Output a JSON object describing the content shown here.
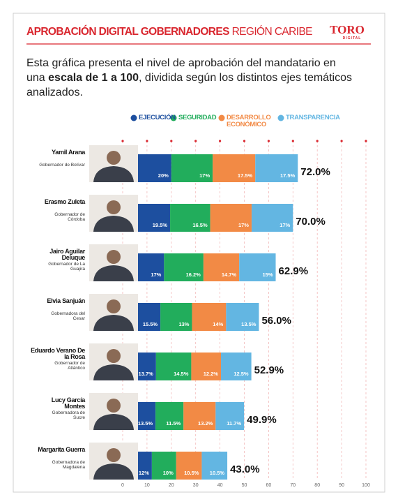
{
  "header": {
    "title_bold": "APROBACIÓN DIGITAL GOBERNADORES",
    "title_light": "REGIÓN CARIBE",
    "logo": "TORO",
    "logo_sub": "DIGITAL",
    "intro_before": "Esta gráfica presenta el nivel de aprobación del mandatario en una ",
    "intro_bold": "escala de 1 a 100",
    "intro_after": ", dividida según los distintos ejes temáticos analizados."
  },
  "chart_data": {
    "type": "stacked-barh",
    "categories": [
      "Yamil Arana",
      "Erasmo Zuleta",
      "Jairo Aguilar Deluque",
      "Elvia Sanjuán",
      "Eduardo Verano De la Rosa",
      "Lucy García Montes",
      "Margarita Guerra"
    ],
    "roles": [
      "Gobernador de Bolívar",
      "Gobernador de Córdoba",
      "Gobernador de La Guajira",
      "Gobernadora del Cesar",
      "Gobernador de Atlántico",
      "Gobernadora de Sucre",
      "Gobernadora de Magdalena"
    ],
    "series": [
      {
        "name": "EJECUCIÓN",
        "color": "#1d4f9f",
        "values": [
          20,
          19.5,
          17,
          15.5,
          13.7,
          13.5,
          12
        ],
        "value_labels": [
          "20%",
          "19.5%",
          "17%",
          "15.5%",
          "13.7%",
          "13.5%",
          "12%"
        ]
      },
      {
        "name": "SEGURIDAD",
        "color": "#22ad5c",
        "values": [
          17,
          16.5,
          16.2,
          13,
          14.5,
          11.5,
          10
        ],
        "value_labels": [
          "17%",
          "16.5%",
          "16.2%",
          "13%",
          "14.5%",
          "11.5%",
          "10%"
        ]
      },
      {
        "name": "DESARROLLO ECONÓMICO",
        "color": "#f28a45",
        "values": [
          17.5,
          17,
          14.7,
          14,
          12.2,
          13.2,
          10.5
        ],
        "value_labels": [
          "17.5%",
          "17%",
          "14.7%",
          "14%",
          "12.2%",
          "13.2%",
          "10.5%"
        ]
      },
      {
        "name": "TRANSPARENCIA",
        "color": "#63b6e2",
        "values": [
          17.5,
          17,
          15,
          13.5,
          12.5,
          11.7,
          10.5
        ],
        "value_labels": [
          "17.5%",
          "17%",
          "15%",
          "13.5%",
          "12.5%",
          "11.7%",
          "10.5%"
        ]
      }
    ],
    "totals": {
      "values": [
        72,
        70,
        62.9,
        56,
        52.9,
        49.9,
        43
      ],
      "value_labels": [
        "72.0%",
        "70.0%",
        "62.9%",
        "56.0%",
        "52.9%",
        "49.9%",
        "43.0%"
      ]
    },
    "xlim": [
      0,
      100
    ],
    "xticks": [
      0,
      10,
      20,
      30,
      40,
      50,
      60,
      70,
      80,
      90,
      100
    ],
    "grid": true,
    "grid_color": "#f2b8b8"
  }
}
